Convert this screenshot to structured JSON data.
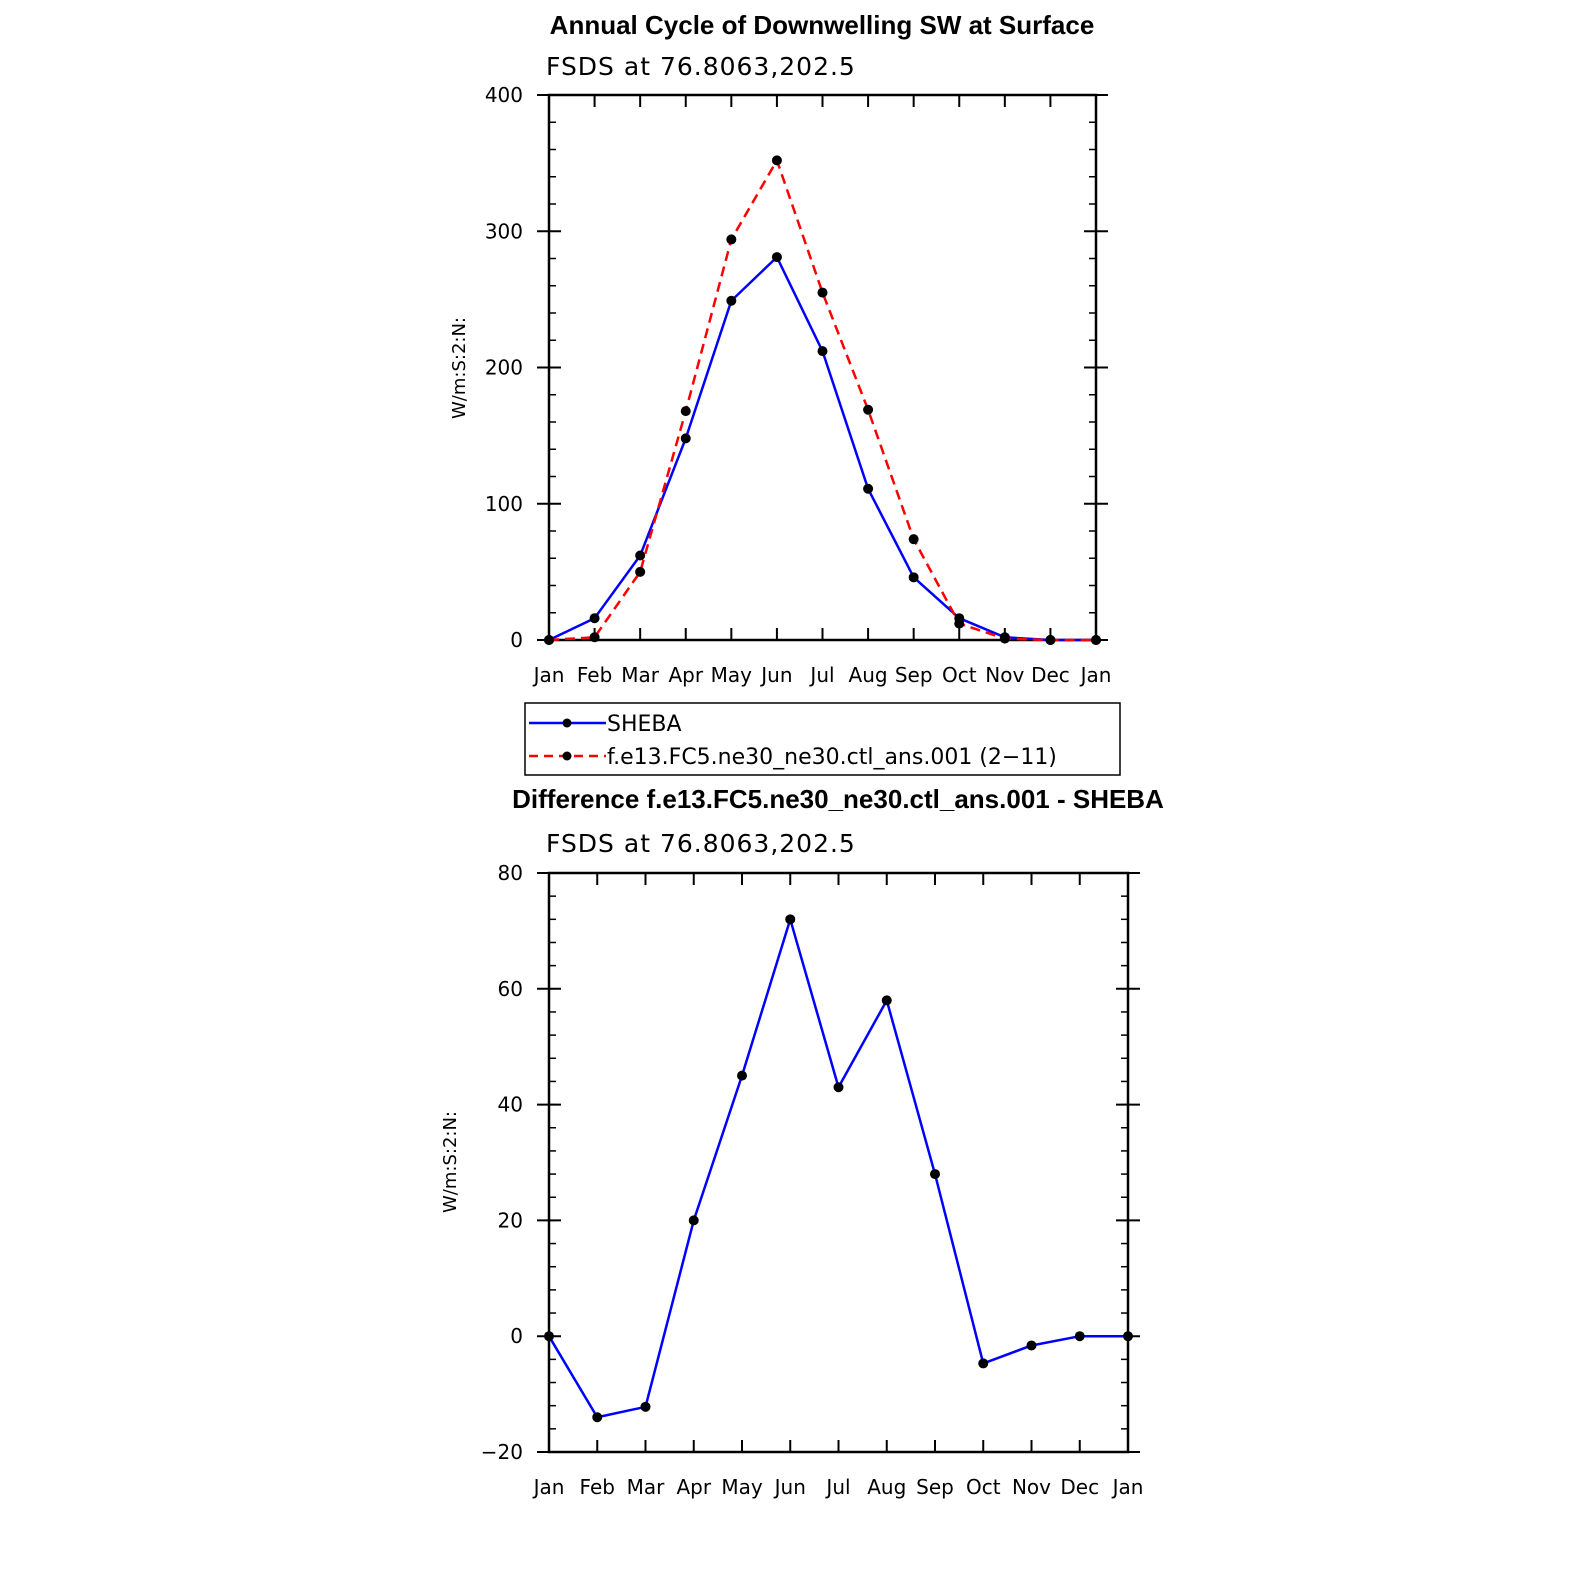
{
  "chart_data": [
    {
      "type": "line",
      "title": "Annual Cycle of Downwelling SW at Surface",
      "subtitle": "FSDS at 76.8063,202.5",
      "xlabel": "",
      "ylabel": "W/m:S:2:N:",
      "categories": [
        "Jan",
        "Feb",
        "Mar",
        "Apr",
        "May",
        "Jun",
        "Jul",
        "Aug",
        "Sep",
        "Oct",
        "Nov",
        "Dec",
        "Jan"
      ],
      "ylim": [
        0,
        400
      ],
      "yticks": [
        0,
        100,
        200,
        300,
        400
      ],
      "series": [
        {
          "name": "SHEBA",
          "color": "#0000ff",
          "dash": "solid",
          "values": [
            0,
            16,
            62,
            148,
            249,
            281,
            212,
            111,
            46,
            16,
            2,
            0,
            0
          ]
        },
        {
          "name": "f.e13.FC5.ne30_ne30.ctl_ans.001 (2−11)",
          "color": "#ff0000",
          "dash": "dashed",
          "values": [
            0,
            2,
            50,
            168,
            294,
            352,
            255,
            169,
            74,
            12,
            1,
            0,
            0
          ]
        }
      ],
      "legend": [
        "SHEBA",
        "f.e13.FC5.ne30_ne30.ctl_ans.001 (2−11)"
      ]
    },
    {
      "type": "line",
      "title": "Difference f.e13.FC5.ne30_ne30.ctl_ans.001 - SHEBA",
      "subtitle": "FSDS at 76.8063,202.5",
      "xlabel": "",
      "ylabel": "W/m:S:2:N:",
      "categories": [
        "Jan",
        "Feb",
        "Mar",
        "Apr",
        "May",
        "Jun",
        "Jul",
        "Aug",
        "Sep",
        "Oct",
        "Nov",
        "Dec",
        "Jan"
      ],
      "ylim": [
        -20,
        80
      ],
      "yticks": [
        -20,
        0,
        20,
        40,
        60,
        80
      ],
      "ytick_labels": [
        "−20",
        "0",
        "20",
        "40",
        "60",
        "80"
      ],
      "series": [
        {
          "name": "Difference",
          "color": "#0000ff",
          "dash": "solid",
          "values": [
            0,
            -14,
            -12.2,
            20,
            45,
            72,
            43,
            58,
            28,
            -4.7,
            -1.6,
            0,
            0
          ]
        }
      ]
    }
  ]
}
